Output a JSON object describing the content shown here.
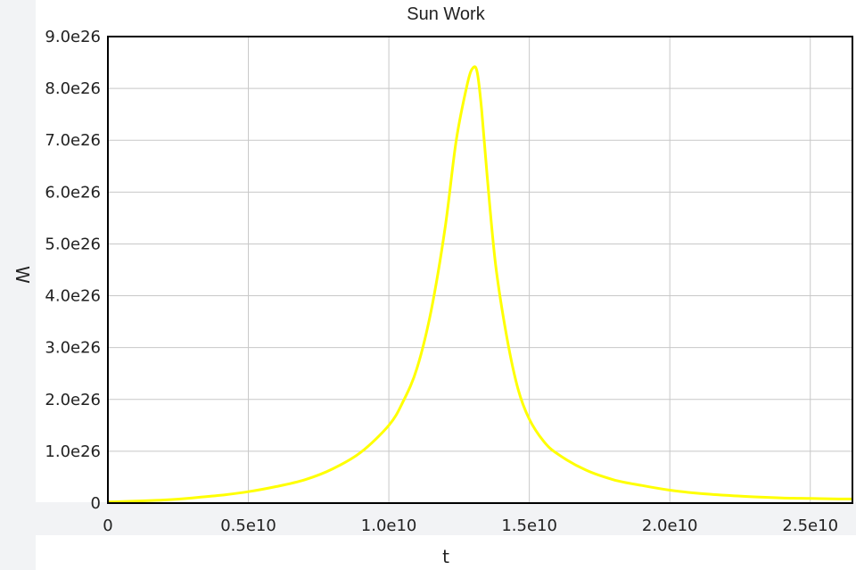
{
  "chart_data": {
    "type": "line",
    "title": "Sun Work",
    "xlabel": "t",
    "ylabel": "W",
    "xlim": [
      0,
      26500000000
    ],
    "ylim": [
      0,
      9e+26
    ],
    "x_ticks": [
      {
        "value": 0,
        "label": "0"
      },
      {
        "value": 5000000000,
        "label": "0.5e10"
      },
      {
        "value": 10000000000,
        "label": "1.0e10"
      },
      {
        "value": 15000000000,
        "label": "1.5e10"
      },
      {
        "value": 20000000000,
        "label": "2.0e10"
      },
      {
        "value": 25000000000,
        "label": "2.5e10"
      }
    ],
    "y_ticks": [
      {
        "value": 0,
        "label": "0"
      },
      {
        "value": 1e+26,
        "label": "1.0e26"
      },
      {
        "value": 2e+26,
        "label": "2.0e26"
      },
      {
        "value": 3e+26,
        "label": "3.0e26"
      },
      {
        "value": 4e+26,
        "label": "4.0e26"
      },
      {
        "value": 5e+26,
        "label": "5.0e26"
      },
      {
        "value": 6e+26,
        "label": "6.0e26"
      },
      {
        "value": 7e+26,
        "label": "7.0e26"
      },
      {
        "value": 8e+26,
        "label": "8.0e26"
      },
      {
        "value": 9e+26,
        "label": "9.0e26"
      }
    ],
    "grid": true,
    "series": [
      {
        "color": "#ffff00",
        "x": [
          0,
          1000000000,
          2000000000,
          3000000000,
          4000000000,
          5000000000,
          6000000000,
          7000000000,
          8000000000,
          9000000000,
          10000000000,
          10500000000,
          11000000000,
          11500000000,
          12000000000,
          12400000000,
          12800000000,
          13000000000,
          13150000000,
          13300000000,
          13500000000,
          13800000000,
          14200000000,
          14600000000,
          15000000000,
          15500000000,
          16000000000,
          17000000000,
          18000000000,
          19000000000,
          20000000000,
          21000000000,
          22000000000,
          23000000000,
          24000000000,
          25000000000,
          26000000000,
          26500000000
        ],
        "y": [
          2e+24,
          4e+24,
          6e+24,
          1e+25,
          1.5e+25,
          2.2e+25,
          3.2e+25,
          4.5e+25,
          6.6e+25,
          9.8e+25,
          1.5e+26,
          1.95e+26,
          2.6e+26,
          3.7e+26,
          5.3e+26,
          7e+26,
          8.1e+26,
          8.4e+26,
          8.3e+26,
          7.6e+26,
          6.3e+26,
          4.6e+26,
          3.2e+26,
          2.2e+26,
          1.62e+26,
          1.2e+26,
          9.5e+25,
          6.4e+25,
          4.5e+25,
          3.4e+25,
          2.5e+25,
          1.9e+25,
          1.5e+25,
          1.2e+25,
          1e+25,
          9e+24,
          8e+24,
          8e+24
        ]
      }
    ]
  }
}
